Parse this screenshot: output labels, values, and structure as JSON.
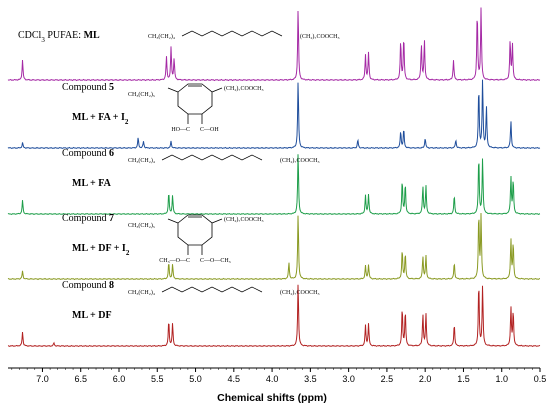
{
  "chart_data": {
    "type": "line",
    "xlabel": "Chemical shifts (ppm)",
    "x_ticks": [
      "7.0",
      "6.5",
      "6.0",
      "5.5",
      "5.0",
      "4.5",
      "4.0",
      "3.5",
      "3.0",
      "2.5",
      "2.0",
      "1.5",
      "1.0",
      "0.5"
    ],
    "xlim": [
      7.45,
      0.5
    ],
    "series": [
      {
        "name": "ML",
        "labels": [
          {
            "text": "CDCl"
          },
          {
            "text": "3",
            "sub": true
          },
          {
            "text": "    PUFAE: "
          },
          {
            "text": "ML",
            "bold": true
          }
        ],
        "color": "#a52aa5",
        "structure": [
          "CH₃(CH₂)₄",
          "(CH₂)₇COOCH₃"
        ],
        "peaks": [
          [
            7.26,
            0.28
          ],
          [
            5.38,
            0.32
          ],
          [
            5.32,
            0.45
          ],
          [
            5.28,
            0.3
          ],
          [
            3.66,
            1.0
          ],
          [
            2.78,
            0.35
          ],
          [
            2.74,
            0.38
          ],
          [
            2.32,
            0.55
          ],
          [
            2.28,
            0.6
          ],
          [
            2.05,
            0.5
          ],
          [
            2.01,
            0.55
          ],
          [
            1.63,
            0.28
          ],
          [
            1.32,
            0.95
          ],
          [
            1.27,
            1.0
          ],
          [
            0.89,
            0.55
          ],
          [
            0.86,
            0.5
          ]
        ]
      },
      {
        "name": "Compound 5",
        "labels": [
          {
            "text": "Compound "
          },
          {
            "text": "5",
            "bold": true
          },
          {
            "text": "\n"
          },
          {
            "text": "ML + FA + I",
            "bold": true
          },
          {
            "text": "2",
            "sub": true,
            "bold": true
          }
        ],
        "color": "#1f4e9c",
        "structure": [
          "CH₃(CH₂)₅",
          "(CH₂)₇COOCH₃",
          "HO—C",
          "C—OH"
        ],
        "peaks": [
          [
            7.26,
            0.08
          ],
          [
            5.75,
            0.15
          ],
          [
            5.68,
            0.1
          ],
          [
            5.32,
            0.1
          ],
          [
            3.66,
            1.0
          ],
          [
            2.88,
            0.12
          ],
          [
            2.32,
            0.25
          ],
          [
            2.28,
            0.28
          ],
          [
            2.0,
            0.15
          ],
          [
            1.6,
            0.12
          ],
          [
            1.3,
            0.9
          ],
          [
            1.25,
            1.0
          ],
          [
            1.2,
            0.6
          ],
          [
            0.88,
            0.4
          ]
        ]
      },
      {
        "name": "Compound 6",
        "labels": [
          {
            "text": "Compound "
          },
          {
            "text": "6",
            "bold": true
          },
          {
            "text": "\n"
          },
          {
            "text": "ML + FA",
            "bold": true
          }
        ],
        "color": "#1e9e4a",
        "structure": [
          "CH₃(CH₂)₄",
          "(CH₂)₇COOCH₃"
        ],
        "peaks": [
          [
            7.26,
            0.22
          ],
          [
            5.35,
            0.35
          ],
          [
            5.3,
            0.3
          ],
          [
            3.66,
            1.0
          ],
          [
            2.78,
            0.3
          ],
          [
            2.74,
            0.32
          ],
          [
            2.3,
            0.55
          ],
          [
            2.26,
            0.5
          ],
          [
            2.03,
            0.45
          ],
          [
            1.99,
            0.45
          ],
          [
            1.62,
            0.3
          ],
          [
            1.3,
            0.95
          ],
          [
            1.25,
            0.9
          ],
          [
            0.88,
            0.6
          ],
          [
            0.85,
            0.55
          ]
        ]
      },
      {
        "name": "Compound 7",
        "labels": [
          {
            "text": "Compound "
          },
          {
            "text": "7",
            "bold": true
          },
          {
            "text": "\n"
          },
          {
            "text": "ML + DF + I",
            "bold": true
          },
          {
            "text": "2",
            "sub": true,
            "bold": true
          }
        ],
        "color": "#8a9a23",
        "structure": [
          "CH₃(CH₂)₅",
          "(CH₂)₇COOCH₃",
          "CH₃—O—C",
          "C—O—CH₃"
        ],
        "peaks": [
          [
            7.26,
            0.12
          ],
          [
            5.35,
            0.25
          ],
          [
            5.3,
            0.22
          ],
          [
            3.78,
            0.25
          ],
          [
            3.66,
            1.0
          ],
          [
            2.78,
            0.2
          ],
          [
            2.74,
            0.22
          ],
          [
            2.3,
            0.45
          ],
          [
            2.26,
            0.4
          ],
          [
            2.03,
            0.35
          ],
          [
            1.99,
            0.35
          ],
          [
            1.62,
            0.25
          ],
          [
            1.3,
            1.0
          ],
          [
            1.27,
            0.95
          ],
          [
            0.88,
            0.6
          ],
          [
            0.85,
            0.55
          ]
        ]
      },
      {
        "name": "Compound 8",
        "labels": [
          {
            "text": "Compound "
          },
          {
            "text": "8",
            "bold": true
          },
          {
            "text": "\n"
          },
          {
            "text": "ML + DF",
            "bold": true
          }
        ],
        "color": "#b22222",
        "structure": [
          "CH₃(CH₂)₄",
          "(CH₂)₇COOCH₃"
        ],
        "peaks": [
          [
            7.26,
            0.22
          ],
          [
            6.85,
            0.05
          ],
          [
            5.35,
            0.4
          ],
          [
            5.3,
            0.35
          ],
          [
            3.66,
            1.0
          ],
          [
            2.78,
            0.32
          ],
          [
            2.74,
            0.35
          ],
          [
            2.3,
            0.6
          ],
          [
            2.26,
            0.55
          ],
          [
            2.03,
            0.5
          ],
          [
            1.99,
            0.5
          ],
          [
            1.62,
            0.35
          ],
          [
            1.3,
            1.0
          ],
          [
            1.25,
            0.95
          ],
          [
            0.88,
            0.6
          ],
          [
            0.85,
            0.55
          ]
        ]
      }
    ]
  }
}
